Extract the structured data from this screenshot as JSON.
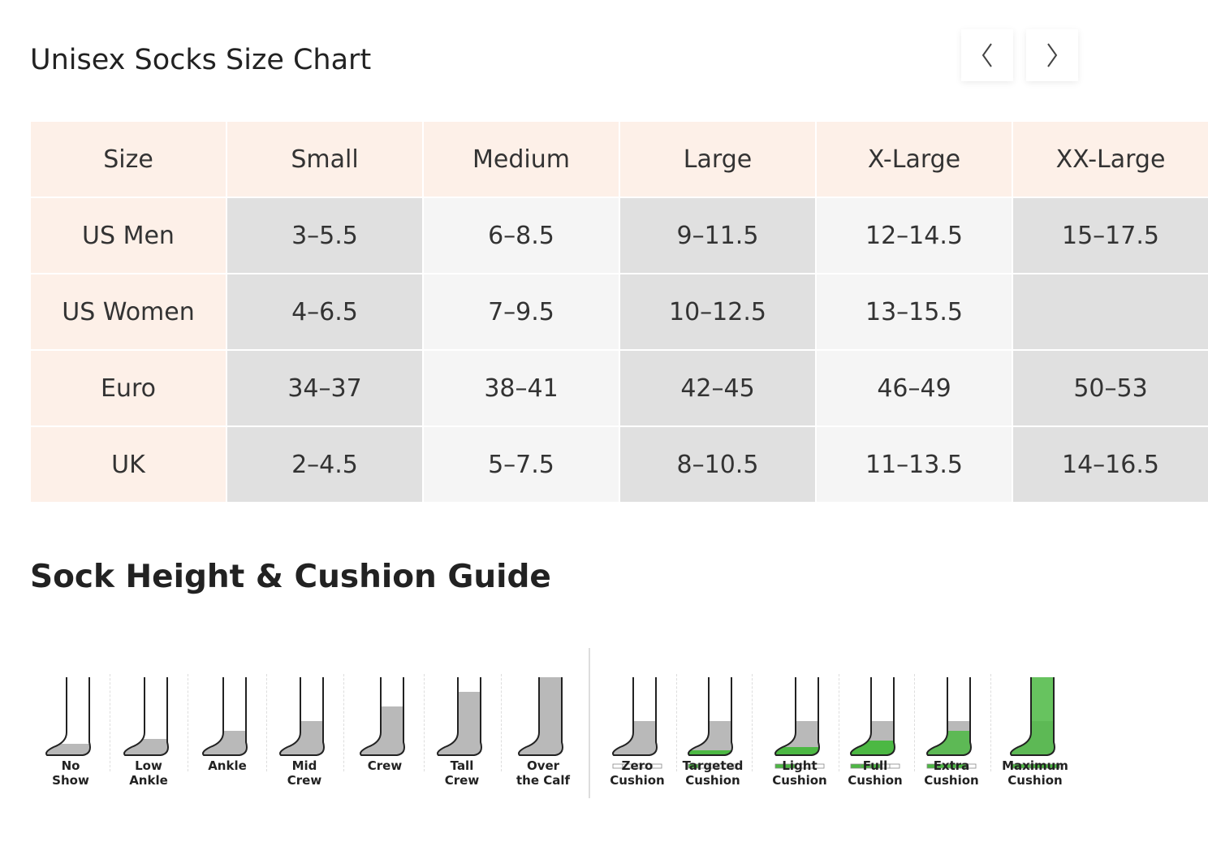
{
  "header": {
    "title": "Unisex Socks Size Chart"
  },
  "table": {
    "columns": [
      "Size",
      "Small",
      "Medium",
      "Large",
      "X-Large",
      "XX-Large"
    ],
    "rows": [
      [
        "US Men",
        "3–5.5",
        "6–8.5",
        "9–11.5",
        "12–14.5",
        "15–17.5"
      ],
      [
        "US Women",
        "4–6.5",
        "7–9.5",
        "10–12.5",
        "13–15.5",
        null
      ],
      [
        "Euro",
        "34–37",
        "38–41",
        "42–45",
        "46–49",
        "50–53"
      ],
      [
        "UK",
        "2–4.5",
        "5–7.5",
        "8–10.5",
        "11–13.5",
        "14–16.5"
      ]
    ]
  },
  "guide": {
    "title": "Sock Height & Cushion Guide",
    "heights": [
      "No Show",
      "Low Ankle",
      "Ankle",
      "Mid Crew",
      "Crew",
      "Tall Crew",
      "Over the Calf"
    ],
    "cushions": [
      "Zero Cushion",
      "Targeted Cushion",
      "Light Cushion",
      "Full Cushion",
      "Extra Cushion",
      "Maximum Cushion"
    ]
  }
}
